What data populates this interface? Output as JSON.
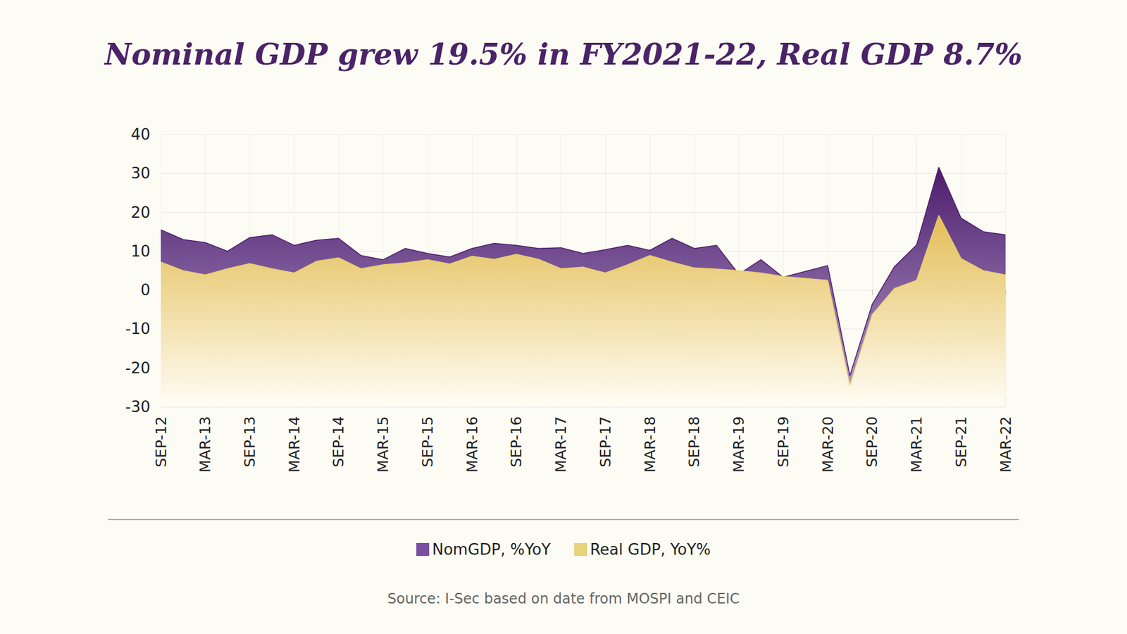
{
  "chart_data": {
    "type": "area",
    "title": "Nominal GDP grew 19.5% in FY2021-22, Real GDP 8.7%",
    "source": "Source: I-Sec based on date from MOSPI and CEIC",
    "categories": [
      "SEP-12",
      null,
      "MAR-13",
      null,
      "SEP-13",
      null,
      "MAR-14",
      null,
      "SEP-14",
      null,
      "MAR-15",
      null,
      "SEP-15",
      null,
      "MAR-16",
      null,
      "SEP-16",
      null,
      "MAR-17",
      null,
      "SEP-17",
      null,
      "MAR-18",
      null,
      "SEP-18",
      null,
      "MAR-19",
      null,
      "SEP-19",
      null,
      "MAR-20",
      null,
      "SEP-20",
      null,
      "MAR-21",
      null,
      "SEP-21",
      null,
      "MAR-22"
    ],
    "series": [
      {
        "name": "NomGDP, %YoY",
        "color": "#7b4fa0",
        "values": [
          15.5,
          13,
          12.2,
          10,
          13.5,
          14.2,
          11.5,
          12.8,
          13.3,
          8.9,
          7.8,
          10.7,
          9.4,
          8.5,
          10.7,
          12,
          11.5,
          10.7,
          10.9,
          9.4,
          10.4,
          11.5,
          10.2,
          13.3,
          10.7,
          11.5,
          4.1,
          7.8,
          3.3,
          4.8,
          6.3,
          -22,
          -3.7,
          6,
          11.6,
          31.6,
          18.5,
          15,
          14.2
        ]
      },
      {
        "name": "Real GDP, YoY%",
        "color": "#e8d27a",
        "values": [
          7.2,
          5,
          3.9,
          5.5,
          6.8,
          5.5,
          4.4,
          7.4,
          8.3,
          5.5,
          6.5,
          7,
          7.8,
          6.7,
          8.7,
          7.9,
          9.2,
          7.9,
          5.5,
          5.9,
          4.4,
          6.5,
          8.9,
          7.2,
          5.7,
          5.4,
          5,
          4.4,
          3.5,
          3,
          2.5,
          -24.4,
          -6.3,
          0.4,
          2.5,
          19.2,
          8.1,
          5,
          3.9
        ]
      }
    ],
    "ylim": [
      -30,
      40
    ],
    "yticks": [
      -30,
      -20,
      -10,
      0,
      10,
      20,
      30,
      40
    ],
    "grid": true,
    "legend": "bottom"
  }
}
